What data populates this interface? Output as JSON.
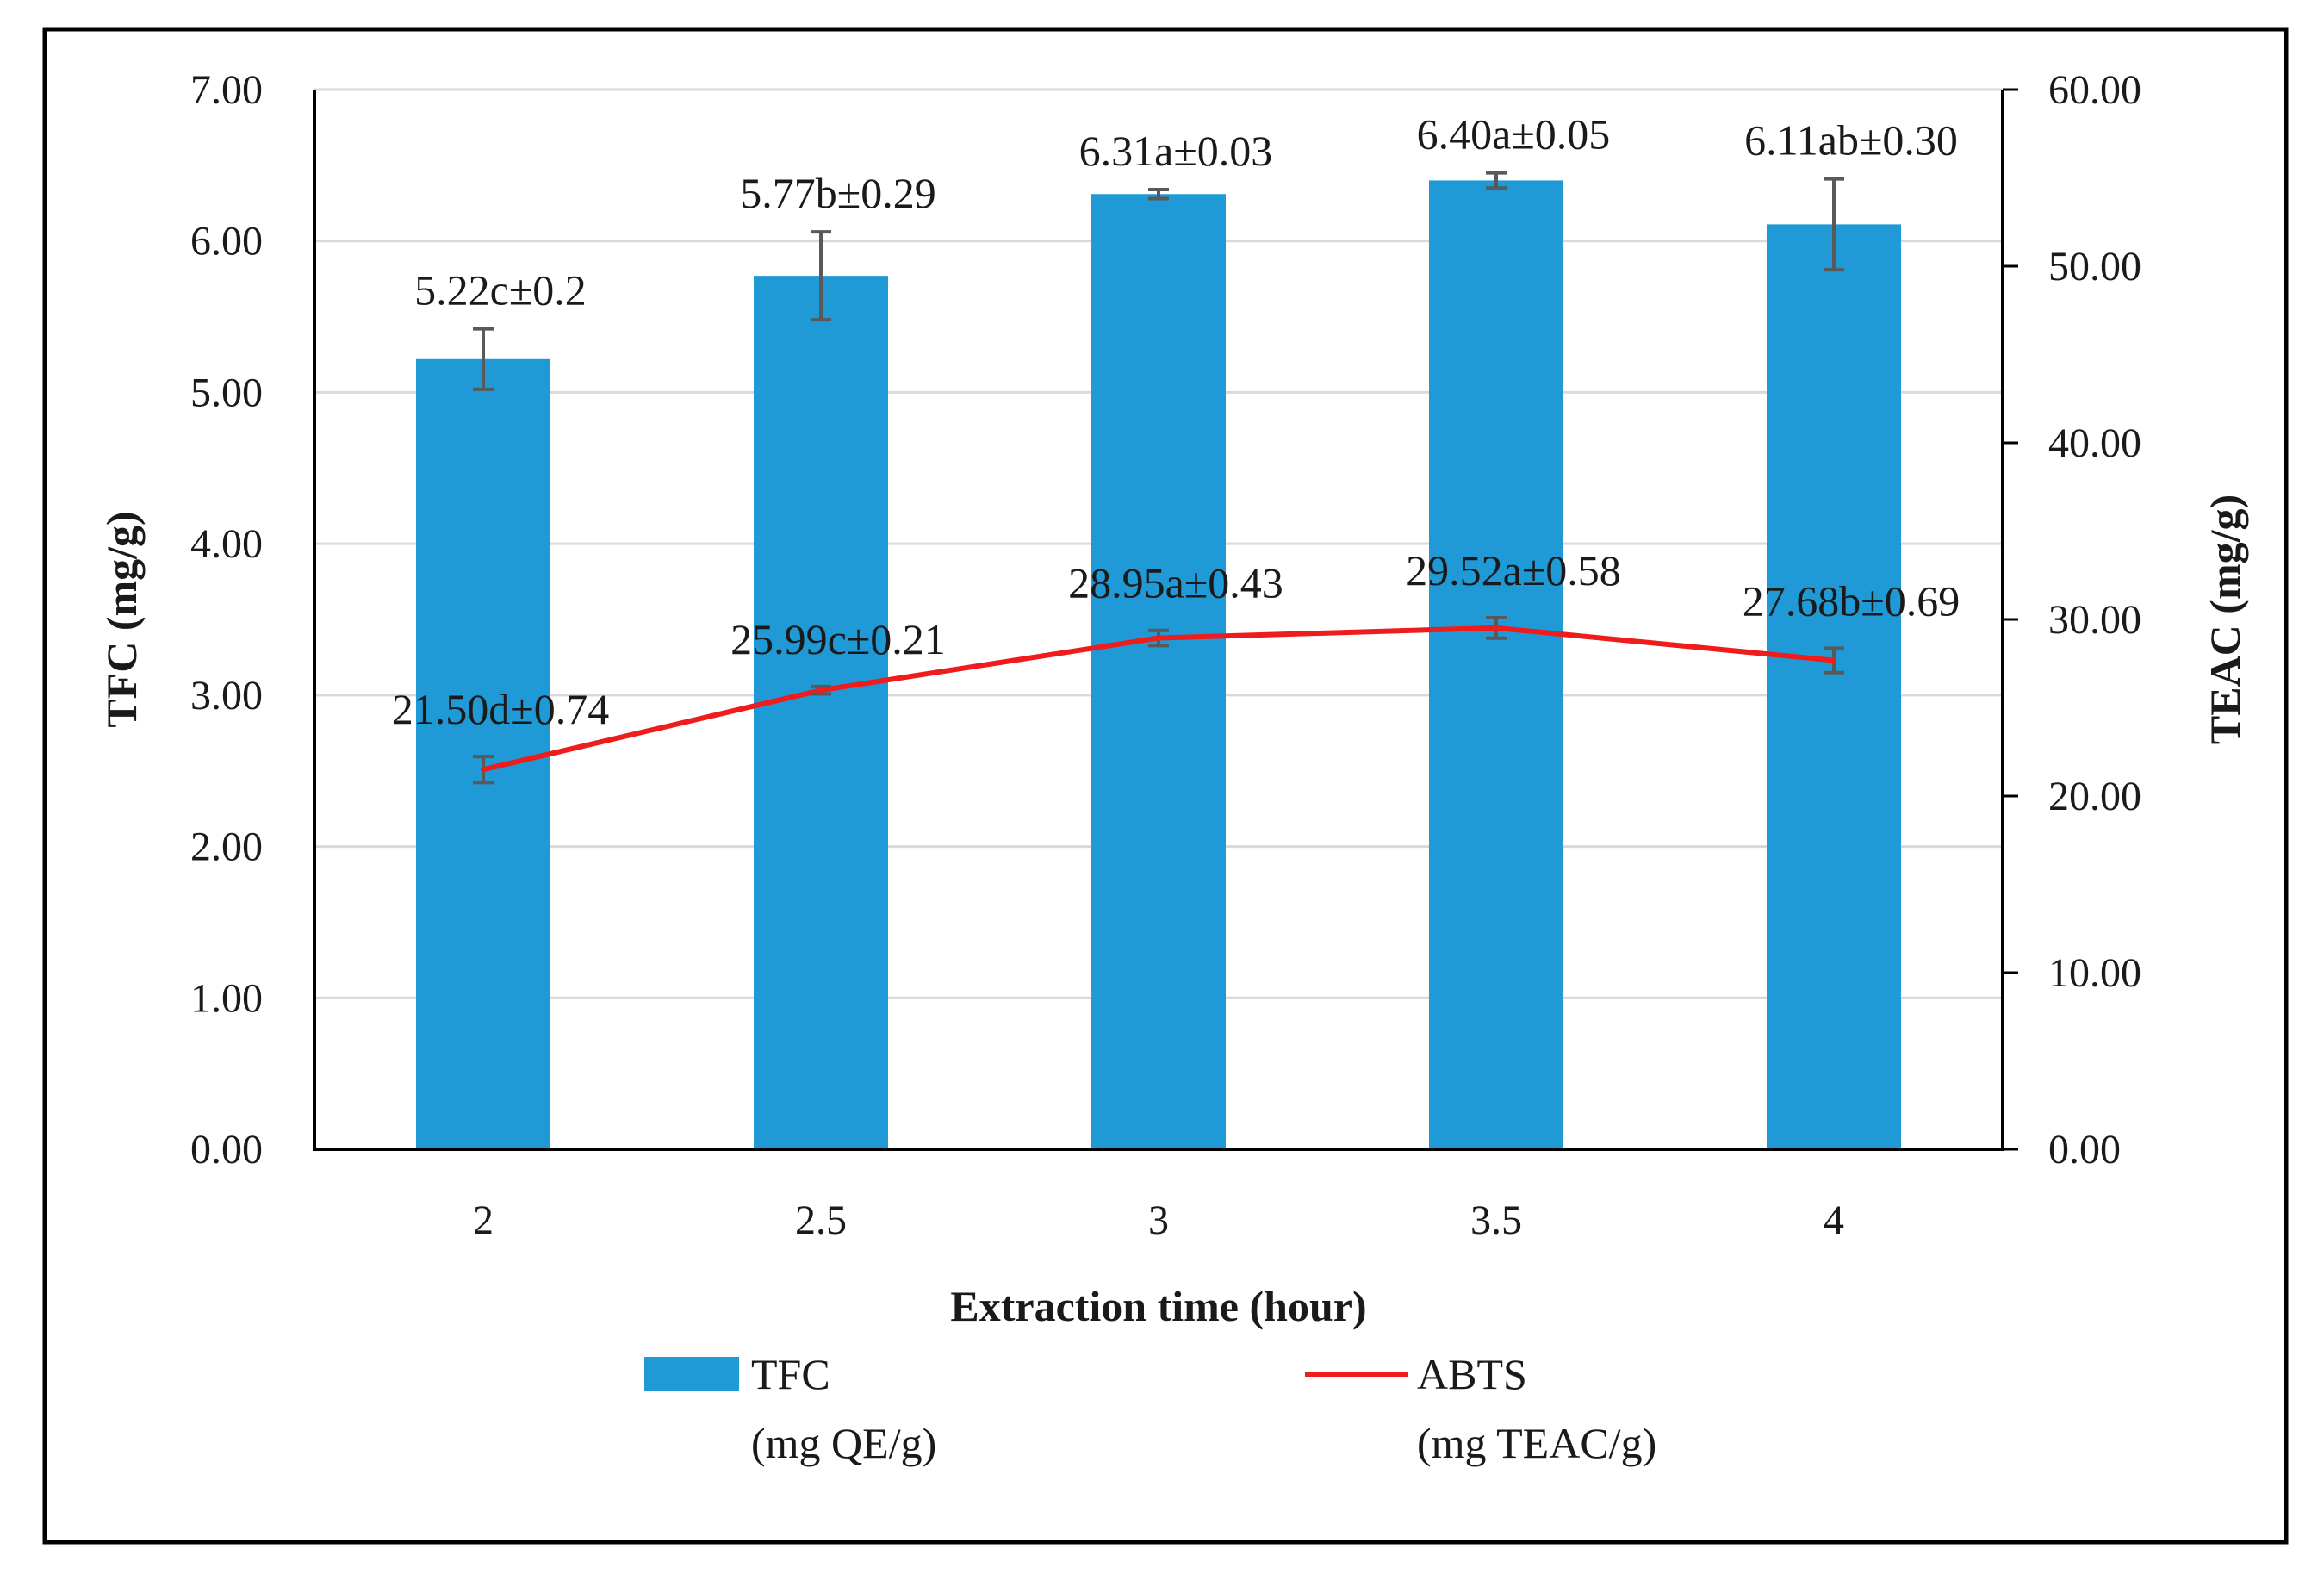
{
  "chart_data": {
    "type": "bar",
    "categories": [
      "2",
      "2.5",
      "3",
      "3.5",
      "4"
    ],
    "xlabel": "Extraction time (hour)",
    "ylabel_left": "TFC (mg/g)",
    "ylabel_right": "TEAC (mg/g)",
    "ylim_left": [
      0,
      7
    ],
    "ylim_right": [
      0,
      60
    ],
    "left_ticks": [
      "0.00",
      "1.00",
      "2.00",
      "3.00",
      "4.00",
      "5.00",
      "6.00",
      "7.00"
    ],
    "right_ticks": [
      "0.00",
      "10.00",
      "20.00",
      "30.00",
      "40.00",
      "50.00",
      "60.00"
    ],
    "grid": true,
    "series": [
      {
        "name": "TFC",
        "unit": "(mg QE/g)",
        "type": "bar",
        "axis": "left",
        "color": "#1f9ad6",
        "values": [
          5.22,
          5.77,
          6.31,
          6.4,
          6.11
        ],
        "errors": [
          0.2,
          0.29,
          0.03,
          0.05,
          0.3
        ],
        "labels": [
          "5.22c±0.2",
          "5.77b±0.29",
          "6.31a±0.03",
          "6.40a±0.05",
          "6.11ab±0.30"
        ]
      },
      {
        "name": "ABTS",
        "unit": "(mg TEAC/g)",
        "type": "line",
        "axis": "right",
        "color": "#ee1c1c",
        "values": [
          21.5,
          25.99,
          28.95,
          29.52,
          27.68
        ],
        "errors": [
          0.74,
          0.21,
          0.43,
          0.58,
          0.69
        ],
        "labels": [
          "21.50d±0.74",
          "25.99c±0.21",
          "28.95a±0.43",
          "29.52a±0.58",
          "27.68b±0.69"
        ]
      }
    ],
    "legend": "bottom"
  }
}
